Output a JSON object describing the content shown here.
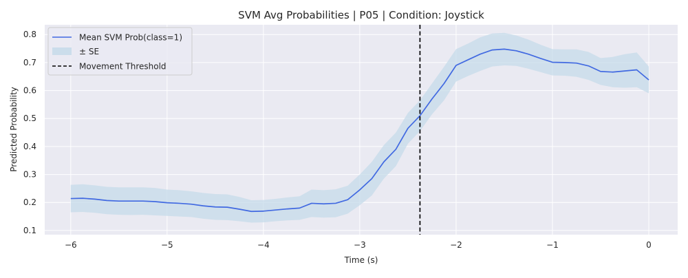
{
  "chart_data": {
    "type": "line",
    "title": "SVM Avg Probabilities | P05 | Condition: Joystick",
    "xlabel": "Time (s)",
    "ylabel": "Predicted Probability",
    "xlim": [
      -6.27,
      0.3
    ],
    "ylim": [
      0.085,
      0.835
    ],
    "xticks": [
      -6,
      -5,
      -4,
      -3,
      -2,
      -1,
      0
    ],
    "xtick_labels": [
      "−6",
      "−5",
      "−4",
      "−3",
      "−2",
      "−1",
      "0"
    ],
    "yticks": [
      0.1,
      0.2,
      0.3,
      0.4,
      0.5,
      0.6,
      0.7,
      0.8
    ],
    "ytick_labels": [
      "0.1",
      "0.2",
      "0.3",
      "0.4",
      "0.5",
      "0.6",
      "0.7",
      "0.8"
    ],
    "grid": true,
    "legend_position": "top-left",
    "threshold_x": -2.375,
    "series": [
      {
        "name": "Mean SVM Prob(class=1)",
        "color": "#4169e1",
        "x": [
          -6.0,
          -5.875,
          -5.75,
          -5.625,
          -5.5,
          -5.375,
          -5.25,
          -5.125,
          -5.0,
          -4.875,
          -4.75,
          -4.625,
          -4.5,
          -4.375,
          -4.25,
          -4.125,
          -4.0,
          -3.875,
          -3.75,
          -3.625,
          -3.5,
          -3.375,
          -3.25,
          -3.125,
          -3.0,
          -2.875,
          -2.75,
          -2.625,
          -2.5,
          -2.375,
          -2.25,
          -2.125,
          -2.0,
          -1.875,
          -1.75,
          -1.625,
          -1.5,
          -1.375,
          -1.25,
          -1.125,
          -1.0,
          -0.875,
          -0.75,
          -0.625,
          -0.5,
          -0.375,
          -0.25,
          -0.125,
          0.0
        ],
        "values": [
          0.214,
          0.215,
          0.212,
          0.207,
          0.205,
          0.205,
          0.205,
          0.203,
          0.199,
          0.197,
          0.194,
          0.188,
          0.184,
          0.183,
          0.176,
          0.168,
          0.169,
          0.173,
          0.177,
          0.18,
          0.197,
          0.195,
          0.197,
          0.21,
          0.245,
          0.285,
          0.345,
          0.39,
          0.465,
          0.51,
          0.57,
          0.625,
          0.69,
          0.71,
          0.73,
          0.745,
          0.748,
          0.742,
          0.73,
          0.715,
          0.701,
          0.7,
          0.698,
          0.688,
          0.668,
          0.666,
          0.67,
          0.674,
          0.638
        ],
        "se_lower": [
          0.165,
          0.166,
          0.163,
          0.158,
          0.156,
          0.155,
          0.156,
          0.154,
          0.152,
          0.15,
          0.148,
          0.142,
          0.138,
          0.137,
          0.133,
          0.128,
          0.129,
          0.133,
          0.136,
          0.138,
          0.148,
          0.146,
          0.147,
          0.16,
          0.19,
          0.225,
          0.285,
          0.33,
          0.41,
          0.455,
          0.515,
          0.565,
          0.632,
          0.652,
          0.67,
          0.686,
          0.69,
          0.688,
          0.678,
          0.666,
          0.654,
          0.653,
          0.649,
          0.638,
          0.62,
          0.612,
          0.61,
          0.612,
          0.59
        ],
        "se_upper": [
          0.263,
          0.265,
          0.261,
          0.256,
          0.254,
          0.254,
          0.254,
          0.252,
          0.246,
          0.244,
          0.24,
          0.234,
          0.23,
          0.229,
          0.22,
          0.208,
          0.209,
          0.213,
          0.218,
          0.222,
          0.246,
          0.244,
          0.247,
          0.26,
          0.3,
          0.345,
          0.405,
          0.45,
          0.52,
          0.565,
          0.625,
          0.685,
          0.748,
          0.768,
          0.79,
          0.804,
          0.806,
          0.797,
          0.782,
          0.764,
          0.748,
          0.747,
          0.747,
          0.738,
          0.716,
          0.72,
          0.73,
          0.736,
          0.686
        ]
      }
    ],
    "legend": [
      {
        "label": "Mean SVM Prob(class=1)",
        "kind": "line",
        "color": "#4169e1"
      },
      {
        "label": "± SE",
        "kind": "band",
        "color": "#c5dbe9"
      },
      {
        "label": "Movement Threshold",
        "kind": "dashed",
        "color": "#000000"
      }
    ]
  }
}
